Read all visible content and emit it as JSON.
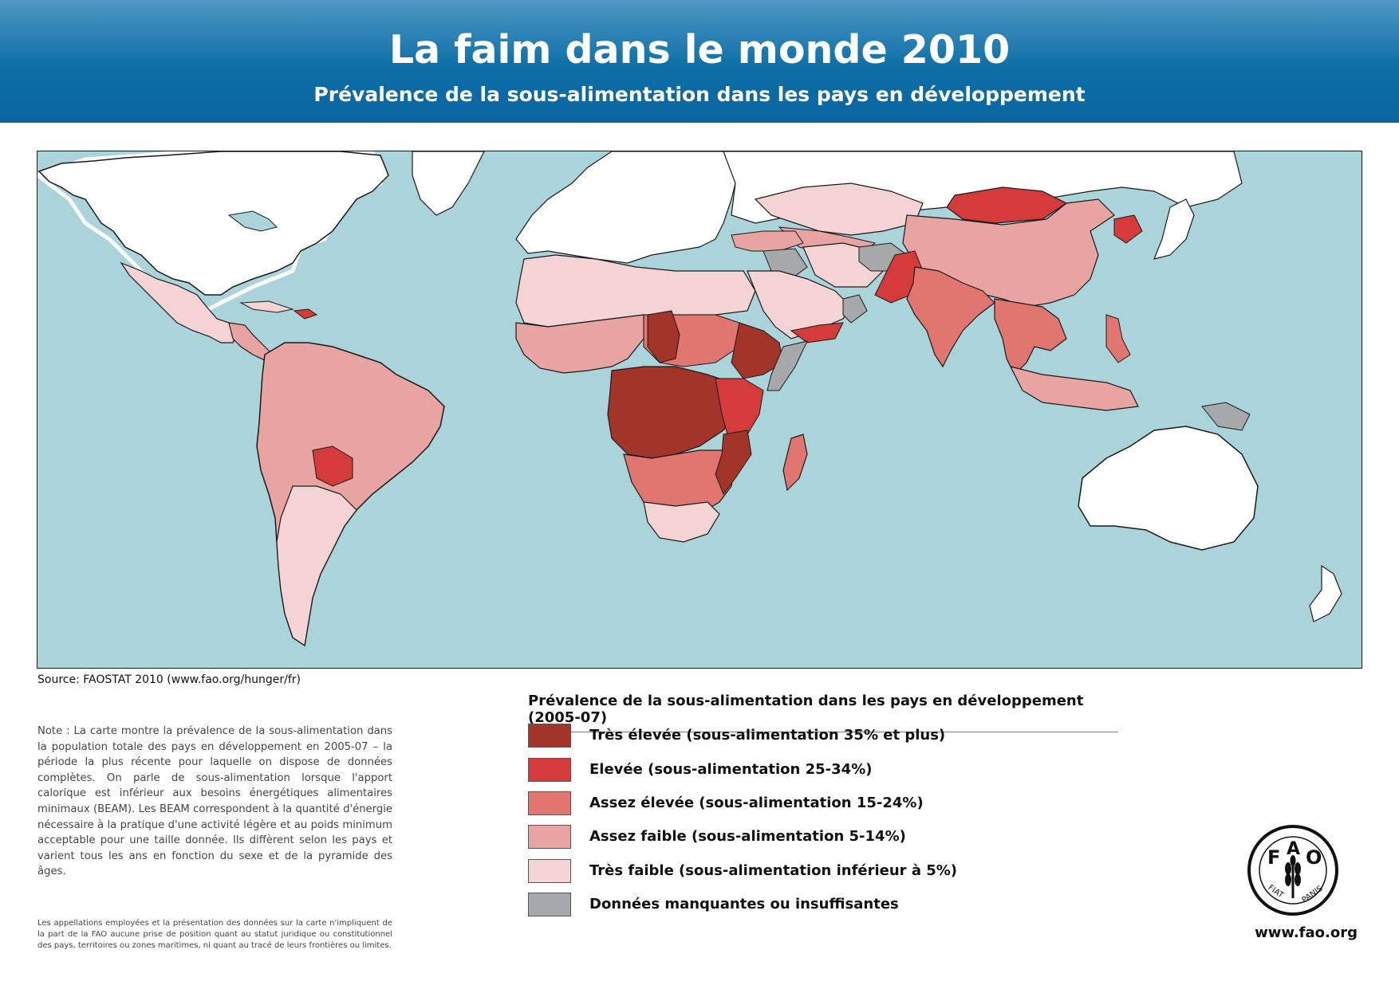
{
  "header": {
    "title": "La faim dans le monde 2010",
    "subtitle": "Prévalence de la sous-alimentation dans les pays en développement"
  },
  "source": "Source: FAOSTAT 2010 (www.fao.org/hunger/fr)",
  "note": "Note : La carte montre la prévalence de la sous-alimentation dans la population totale des pays en développement en 2005-07 – la période la plus récente pour laquelle on dispose de données complètes. On parle de sous-alimentation lorsque l'apport calorique est inférieur aux besoins énergétiques alimentaires minimaux (BEAM). Les BEAM correspondent à la quantité d'énergie nécessaire à la pratique d'une activité légère et au poids minimum acceptable pour une taille donnée. Ils diffèrent selon les pays et varient tous les ans en fonction du sexe et de la pyramide des âges.",
  "disclaimer": "Les appellations employées et la présentation des données sur la carte n'impliquent de la part de la FAO aucune prise de position quant au statut juridique ou constitutionnel des pays, territoires ou zones maritimes, ni quant au tracé de leurs frontières ou limites.",
  "legend": {
    "title": "Prévalence de la sous-alimentation dans les pays en développement (2005-07)",
    "items": [
      {
        "label": "Très élevée (sous-alimentation 35% et plus)",
        "color": "#a3342a"
      },
      {
        "label": "Elevée (sous-alimentation 25-34%)",
        "color": "#d63b3b"
      },
      {
        "label": "Assez élevée (sous-alimentation 15-24%)",
        "color": "#e17670"
      },
      {
        "label": "Assez faible (sous-alimentation 5-14%)",
        "color": "#e8a3a3"
      },
      {
        "label": "Très faible (sous-alimentation inférieur à 5%)",
        "color": "#f3d3d3"
      },
      {
        "label": "Données manquantes ou insuffisantes",
        "color": "#a6a8aa"
      }
    ]
  },
  "map": {
    "ocean_color": "#aad3da",
    "developed_color": "#ffffff"
  },
  "logo": {
    "letters": "FAO",
    "motto": "FIAT PANIS"
  },
  "url": "www.fao.org"
}
